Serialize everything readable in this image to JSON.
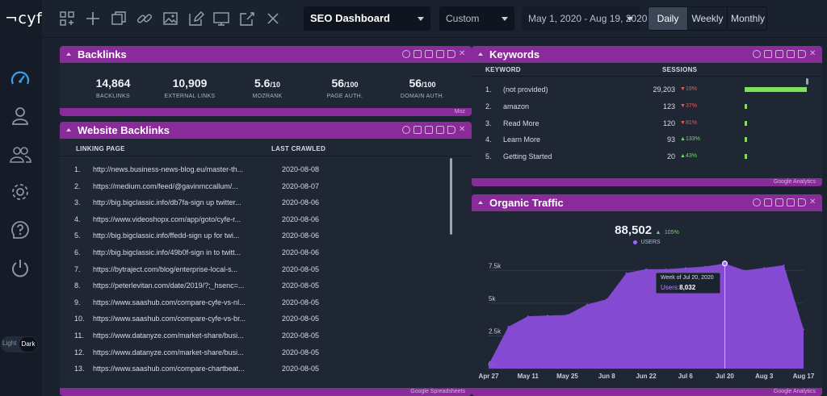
{
  "app": {
    "logo": "¬cyfe"
  },
  "sidebar": {
    "icons": [
      "speedometer-icon",
      "user-icon",
      "users-icon",
      "gear-icon",
      "help-icon",
      "power-icon"
    ],
    "theme": {
      "light": "Light",
      "dark": "Dark",
      "selected": "Dark"
    }
  },
  "toolbar": {
    "icons": [
      "add-widget-icon",
      "add-icon",
      "duplicate-icon",
      "link-icon",
      "image-icon",
      "edit-icon",
      "tv-icon",
      "share-icon",
      "close-icon"
    ],
    "dashboard": "SEO Dashboard",
    "range": "Custom",
    "dates": "May 1, 2020 - Aug 19, 2020",
    "periods": [
      "Daily",
      "Weekly",
      "Monthly"
    ],
    "active_period": "Daily"
  },
  "backlinks": {
    "title": "Backlinks",
    "footer": "Moz",
    "metrics": [
      {
        "value": "14,864",
        "suffix": "",
        "label": "BACKLINKS"
      },
      {
        "value": "10,909",
        "suffix": "",
        "label": "EXTERNAL LINKS"
      },
      {
        "value": "5.6",
        "suffix": "/10",
        "label": "MOZRANK"
      },
      {
        "value": "56",
        "suffix": "/100",
        "label": "PAGE AUTH."
      },
      {
        "value": "56",
        "suffix": "/100",
        "label": "DOMAIN AUTH."
      }
    ]
  },
  "website_backlinks": {
    "title": "Website Backlinks",
    "footer": "Google Spreadsheets",
    "headers": {
      "page": "LINKING PAGE",
      "crawled": "LAST CRAWLED"
    },
    "rows": [
      {
        "idx": "1.",
        "url": "http://news.business-news-blog.eu/master-th...",
        "date": "2020-08-08"
      },
      {
        "idx": "2.",
        "url": "https://medium.com/feed/@gavinmccallum/...",
        "date": "2020-08-07"
      },
      {
        "idx": "3.",
        "url": "http://big.bigclassic.info/db7fa-sign up twitter...",
        "date": "2020-08-06"
      },
      {
        "idx": "4.",
        "url": "https://www.videoshopx.com/app/goto/cyfe-r...",
        "date": "2020-08-06"
      },
      {
        "idx": "5.",
        "url": "http://big.bigclassic.info/ffedd-sign up for twi...",
        "date": "2020-08-06"
      },
      {
        "idx": "6.",
        "url": "http://big.bigclassic.info/49b0f-sign in to twitt...",
        "date": "2020-08-06"
      },
      {
        "idx": "7.",
        "url": "https://bytraject.com/blog/enterprise-local-s...",
        "date": "2020-08-05"
      },
      {
        "idx": "8.",
        "url": "https://peterlevitan.com/date/2019/?;_hsenc=...",
        "date": "2020-08-05"
      },
      {
        "idx": "9.",
        "url": "https://www.saashub.com/compare-cyfe-vs-nl...",
        "date": "2020-08-05"
      },
      {
        "idx": "10.",
        "url": "https://www.saashub.com/compare-cyfe-vs-br...",
        "date": "2020-08-05"
      },
      {
        "idx": "11.",
        "url": "https://www.datanyze.com/market-share/busi...",
        "date": "2020-08-05"
      },
      {
        "idx": "12.",
        "url": "https://www.datanyze.com/market-share/busi...",
        "date": "2020-08-05"
      },
      {
        "idx": "13.",
        "url": "https://www.saashub.com/compare-chartbeat...",
        "date": "2020-08-05"
      }
    ]
  },
  "keywords": {
    "title": "Keywords",
    "footer": "Google Analytics",
    "headers": {
      "keyword": "KEYWORD",
      "sessions": "SESSIONS"
    },
    "rows": [
      {
        "idx": "1.",
        "keyword": "(not provided)",
        "sessions": "29,203",
        "sessions_value": 29203,
        "change": "19%",
        "dir": "down",
        "arrow": "▼"
      },
      {
        "idx": "2.",
        "keyword": "amazon",
        "sessions": "123",
        "sessions_value": 123,
        "change": "37%",
        "dir": "down",
        "arrow": "▼"
      },
      {
        "idx": "3.",
        "keyword": "Read More",
        "sessions": "120",
        "sessions_value": 120,
        "change": "81%",
        "dir": "down",
        "arrow": "▼"
      },
      {
        "idx": "4.",
        "keyword": "Learn More",
        "sessions": "93",
        "sessions_value": 93,
        "change": "133%",
        "dir": "up",
        "arrow": "▲"
      },
      {
        "idx": "5.",
        "keyword": "Getting Started",
        "sessions": "20",
        "sessions_value": 20,
        "change": "43%",
        "dir": "up",
        "arrow": "▲"
      }
    ]
  },
  "organic": {
    "title": "Organic Traffic",
    "footer": "Google Analytics",
    "total": "88,502",
    "change": "105%",
    "change_arrow": "▲",
    "legend": "USERS",
    "tooltip": {
      "title": "Week of Jul 20, 2020",
      "label": "Users:",
      "value": "8,032"
    }
  },
  "colors": {
    "accent": "#8a2b9a",
    "area": "#8a4ddb",
    "positive": "#6fd86a",
    "negative": "#ee5a5a",
    "bar": "#7ee05c"
  },
  "chart_data": {
    "type": "area",
    "title": "",
    "xlabel": "",
    "ylabel": "",
    "series": [
      {
        "name": "USERS",
        "values": [
          {
            "x": "Apr 27",
            "y": 300
          },
          {
            "x": "May 4",
            "y": 3200
          },
          {
            "x": "May 11",
            "y": 4000
          },
          {
            "x": "May 18",
            "y": 4050
          },
          {
            "x": "May 25",
            "y": 4100
          },
          {
            "x": "Jun 1",
            "y": 4900
          },
          {
            "x": "Jun 8",
            "y": 5300
          },
          {
            "x": "Jun 15",
            "y": 7300
          },
          {
            "x": "Jun 22",
            "y": 7600
          },
          {
            "x": "Jun 29",
            "y": 7600
          },
          {
            "x": "Jul 6",
            "y": 7700
          },
          {
            "x": "Jul 13",
            "y": 7800
          },
          {
            "x": "Jul 20",
            "y": 8032
          },
          {
            "x": "Jul 27",
            "y": 7500
          },
          {
            "x": "Aug 3",
            "y": 7700
          },
          {
            "x": "Aug 10",
            "y": 7900
          },
          {
            "x": "Aug 17",
            "y": 3000
          }
        ]
      }
    ],
    "ylim": [
      0,
      9000
    ],
    "yticks": [
      "0k",
      "2.5k",
      "5k",
      "7.5k"
    ],
    "ytick_values": [
      0,
      2500,
      5000,
      7500
    ],
    "xticks": [
      "Apr 27",
      "May 11",
      "May 25",
      "Jun 8",
      "Jun 22",
      "Jul 6",
      "Jul 20",
      "Aug 3",
      "Aug 17"
    ],
    "highlight": "Jul 20",
    "grid": true
  }
}
